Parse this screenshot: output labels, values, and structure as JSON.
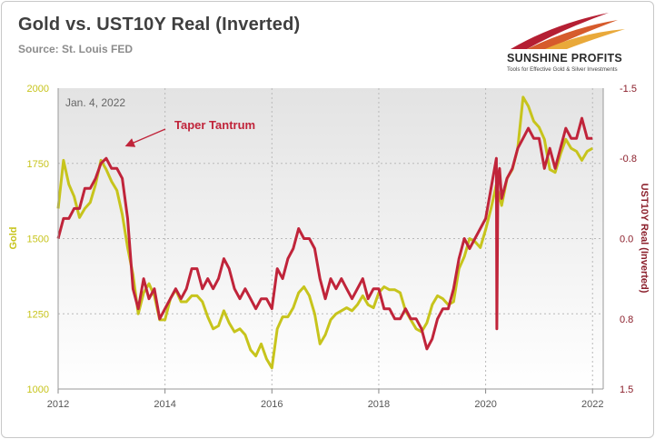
{
  "chart_data": {
    "type": "line",
    "title": "Gold vs. UST10Y Real (Inverted)",
    "subtitle": "Source: St. Louis FED",
    "brand": {
      "name": "SUNSHINE PROFITS",
      "tagline": "Tools for Effective Gold & Silver Investments"
    },
    "annotations": {
      "date_label": "Jan. 4, 2022",
      "event_label": "Taper Tantrum"
    },
    "x_axis": {
      "range": [
        2012.0,
        2022.2
      ],
      "ticks": [
        "2012",
        "2014",
        "2016",
        "2018",
        "2020",
        "2022"
      ]
    },
    "y_left": {
      "label": "Gold",
      "range": [
        1000,
        2000
      ],
      "ticks": [
        "1000",
        "1250",
        "1500",
        "1750",
        "2000"
      ]
    },
    "y_right": {
      "label": "UST10Y Real (Inverted)",
      "range": [
        1.5,
        -1.5
      ],
      "inverted": true,
      "ticks": [
        "1.5",
        "0.8",
        "0.0",
        "-0.8",
        "-1.5"
      ]
    },
    "grid": true,
    "colors": {
      "gold": "#c7c41c",
      "real_yield": "#c0243a",
      "plot_bg_top": "#e6e6e6",
      "plot_bg_bottom": "#ffffff",
      "title": "#3f3f3f"
    },
    "series": [
      {
        "name": "Gold",
        "axis": "left",
        "x": [
          2012.0,
          2012.1,
          2012.2,
          2012.3,
          2012.4,
          2012.5,
          2012.6,
          2012.7,
          2012.8,
          2012.9,
          2013.0,
          2013.1,
          2013.2,
          2013.3,
          2013.4,
          2013.5,
          2013.6,
          2013.7,
          2013.8,
          2013.9,
          2014.0,
          2014.1,
          2014.2,
          2014.3,
          2014.4,
          2014.5,
          2014.6,
          2014.7,
          2014.8,
          2014.9,
          2015.0,
          2015.1,
          2015.2,
          2015.3,
          2015.4,
          2015.5,
          2015.6,
          2015.7,
          2015.8,
          2015.9,
          2016.0,
          2016.1,
          2016.2,
          2016.3,
          2016.4,
          2016.5,
          2016.6,
          2016.7,
          2016.8,
          2016.9,
          2017.0,
          2017.1,
          2017.2,
          2017.3,
          2017.4,
          2017.5,
          2017.6,
          2017.7,
          2017.8,
          2017.9,
          2018.0,
          2018.1,
          2018.2,
          2018.3,
          2018.4,
          2018.5,
          2018.6,
          2018.7,
          2018.8,
          2018.9,
          2019.0,
          2019.1,
          2019.2,
          2019.3,
          2019.4,
          2019.5,
          2019.6,
          2019.7,
          2019.8,
          2019.9,
          2020.0,
          2020.1,
          2020.2,
          2020.3,
          2020.4,
          2020.5,
          2020.6,
          2020.7,
          2020.8,
          2020.9,
          2021.0,
          2021.1,
          2021.2,
          2021.3,
          2021.4,
          2021.5,
          2021.6,
          2021.7,
          2021.8,
          2021.9,
          2022.0
        ],
        "values": [
          1600,
          1760,
          1680,
          1640,
          1570,
          1600,
          1620,
          1680,
          1760,
          1730,
          1690,
          1660,
          1580,
          1470,
          1380,
          1250,
          1320,
          1350,
          1310,
          1230,
          1230,
          1300,
          1330,
          1290,
          1290,
          1310,
          1310,
          1290,
          1240,
          1200,
          1210,
          1260,
          1220,
          1190,
          1200,
          1180,
          1130,
          1110,
          1150,
          1100,
          1070,
          1200,
          1240,
          1240,
          1270,
          1320,
          1340,
          1310,
          1250,
          1150,
          1180,
          1230,
          1250,
          1260,
          1270,
          1260,
          1280,
          1310,
          1280,
          1270,
          1320,
          1340,
          1330,
          1330,
          1320,
          1260,
          1230,
          1200,
          1190,
          1220,
          1280,
          1310,
          1300,
          1280,
          1290,
          1400,
          1440,
          1500,
          1490,
          1470,
          1530,
          1600,
          1680,
          1610,
          1700,
          1730,
          1800,
          1970,
          1940,
          1890,
          1870,
          1830,
          1730,
          1720,
          1780,
          1830,
          1800,
          1790,
          1760,
          1790,
          1800
        ]
      },
      {
        "name": "UST10Y Real",
        "axis": "right",
        "x": [
          2012.0,
          2012.1,
          2012.2,
          2012.3,
          2012.4,
          2012.5,
          2012.6,
          2012.7,
          2012.8,
          2012.9,
          2013.0,
          2013.1,
          2013.2,
          2013.3,
          2013.4,
          2013.5,
          2013.6,
          2013.7,
          2013.8,
          2013.9,
          2014.0,
          2014.1,
          2014.2,
          2014.3,
          2014.4,
          2014.5,
          2014.6,
          2014.7,
          2014.8,
          2014.9,
          2015.0,
          2015.1,
          2015.2,
          2015.3,
          2015.4,
          2015.5,
          2015.6,
          2015.7,
          2015.8,
          2015.9,
          2016.0,
          2016.1,
          2016.2,
          2016.3,
          2016.4,
          2016.5,
          2016.6,
          2016.7,
          2016.8,
          2016.9,
          2017.0,
          2017.1,
          2017.2,
          2017.3,
          2017.4,
          2017.5,
          2017.6,
          2017.7,
          2017.8,
          2017.9,
          2018.0,
          2018.1,
          2018.2,
          2018.3,
          2018.4,
          2018.5,
          2018.6,
          2018.7,
          2018.8,
          2018.9,
          2019.0,
          2019.1,
          2019.2,
          2019.3,
          2019.4,
          2019.5,
          2019.6,
          2019.7,
          2019.8,
          2019.9,
          2020.0,
          2020.1,
          2020.2,
          2020.21,
          2020.23,
          2020.26,
          2020.3,
          2020.4,
          2020.5,
          2020.6,
          2020.7,
          2020.8,
          2020.9,
          2021.0,
          2021.1,
          2021.2,
          2021.3,
          2021.4,
          2021.5,
          2021.6,
          2021.7,
          2021.8,
          2021.9,
          2022.0
        ],
        "values": [
          0.0,
          -0.2,
          -0.2,
          -0.3,
          -0.3,
          -0.5,
          -0.5,
          -0.6,
          -0.75,
          -0.8,
          -0.7,
          -0.7,
          -0.6,
          -0.2,
          0.5,
          0.7,
          0.4,
          0.6,
          0.5,
          0.8,
          0.7,
          0.6,
          0.5,
          0.6,
          0.5,
          0.3,
          0.3,
          0.5,
          0.4,
          0.5,
          0.4,
          0.2,
          0.3,
          0.5,
          0.6,
          0.5,
          0.6,
          0.7,
          0.6,
          0.6,
          0.7,
          0.3,
          0.4,
          0.2,
          0.1,
          -0.1,
          0.0,
          0.0,
          0.1,
          0.4,
          0.6,
          0.4,
          0.5,
          0.4,
          0.5,
          0.6,
          0.5,
          0.4,
          0.6,
          0.5,
          0.5,
          0.7,
          0.7,
          0.8,
          0.8,
          0.7,
          0.8,
          0.8,
          0.9,
          1.1,
          1.0,
          0.8,
          0.7,
          0.7,
          0.5,
          0.2,
          0.0,
          0.1,
          0.0,
          -0.1,
          -0.2,
          -0.5,
          -0.8,
          0.9,
          -0.6,
          -0.7,
          -0.4,
          -0.6,
          -0.7,
          -0.9,
          -1.0,
          -1.1,
          -1.0,
          -1.0,
          -0.7,
          -0.9,
          -0.7,
          -0.9,
          -1.1,
          -1.0,
          -1.0,
          -1.2,
          -1.0,
          -1.0
        ]
      }
    ]
  }
}
